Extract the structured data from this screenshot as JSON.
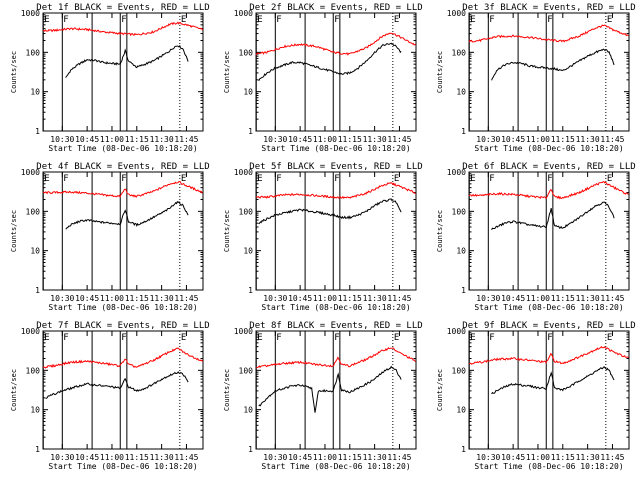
{
  "chart_data": {
    "type": "line",
    "y_scale": "log",
    "ylim": [
      1,
      1000
    ],
    "y_ticks": [
      "1",
      "10",
      "100",
      "1000"
    ],
    "ylabel": "Counts/sec",
    "x_range": [
      "10:18:20",
      "11:55"
    ],
    "x_ticks": [
      "10:30",
      "10:45",
      "11:00",
      "11:15",
      "11:30",
      "11:45"
    ],
    "xlabel": "Start Time (08-Dec-06 10:18:20)",
    "series_colors": {
      "events": "#000000",
      "lld": "#ff0000"
    },
    "flag_lines": [
      {
        "label": "E",
        "time": "10:18:30",
        "style": "solid"
      },
      {
        "label": "F",
        "time": "10:30",
        "style": "solid"
      },
      {
        "label": "",
        "time": "10:48",
        "style": "solid"
      },
      {
        "label": "F",
        "time": "11:05",
        "style": "solid"
      },
      {
        "label": "",
        "time": "11:09",
        "style": "solid"
      },
      {
        "label": "E",
        "time": "11:41",
        "style": "dotted"
      }
    ],
    "panels": [
      {
        "title": "Det 1f BLACK = Events, RED = LLD",
        "events": [
          [
            "10:32",
            22
          ],
          [
            "10:35",
            35
          ],
          [
            "10:40",
            50
          ],
          [
            "10:45",
            65
          ],
          [
            "10:50",
            62
          ],
          [
            "10:55",
            55
          ],
          [
            "11:00",
            52
          ],
          [
            "11:05",
            50
          ],
          [
            "11:08",
            110
          ],
          [
            "11:10",
            60
          ],
          [
            "11:15",
            42
          ],
          [
            "11:20",
            50
          ],
          [
            "11:25",
            60
          ],
          [
            "11:30",
            80
          ],
          [
            "11:35",
            110
          ],
          [
            "11:38",
            140
          ],
          [
            "11:40",
            150
          ],
          [
            "11:43",
            120
          ],
          [
            "11:46",
            60
          ]
        ],
        "lld": [
          [
            "10:18:20",
            350
          ],
          [
            "10:25",
            360
          ],
          [
            "10:35",
            400
          ],
          [
            "10:45",
            380
          ],
          [
            "10:55",
            330
          ],
          [
            "11:05",
            300
          ],
          [
            "11:15",
            280
          ],
          [
            "11:25",
            330
          ],
          [
            "11:35",
            520
          ],
          [
            "11:40",
            560
          ],
          [
            "11:45",
            500
          ],
          [
            "11:55",
            380
          ]
        ]
      },
      {
        "title": "Det 2f BLACK = Events, RED = LLD",
        "events": [
          [
            "10:20",
            20
          ],
          [
            "10:25",
            30
          ],
          [
            "10:30",
            40
          ],
          [
            "10:40",
            55
          ],
          [
            "10:45",
            55
          ],
          [
            "10:55",
            42
          ],
          [
            "11:05",
            32
          ],
          [
            "11:10",
            28
          ],
          [
            "11:15",
            30
          ],
          [
            "11:20",
            40
          ],
          [
            "11:25",
            60
          ],
          [
            "11:30",
            100
          ],
          [
            "11:35",
            150
          ],
          [
            "11:40",
            170
          ],
          [
            "11:43",
            140
          ],
          [
            "11:46",
            100
          ]
        ],
        "lld": [
          [
            "10:18:20",
            90
          ],
          [
            "10:25",
            100
          ],
          [
            "10:35",
            140
          ],
          [
            "10:45",
            160
          ],
          [
            "10:55",
            140
          ],
          [
            "11:05",
            100
          ],
          [
            "11:15",
            90
          ],
          [
            "11:25",
            130
          ],
          [
            "11:35",
            260
          ],
          [
            "11:40",
            320
          ],
          [
            "11:45",
            250
          ],
          [
            "11:55",
            150
          ]
        ]
      },
      {
        "title": "Det 3f BLACK = Events, RED = LLD",
        "events": [
          [
            "10:32",
            20
          ],
          [
            "10:35",
            35
          ],
          [
            "10:40",
            48
          ],
          [
            "10:45",
            55
          ],
          [
            "10:50",
            52
          ],
          [
            "10:55",
            45
          ],
          [
            "11:00",
            42
          ],
          [
            "11:05",
            40
          ],
          [
            "11:10",
            38
          ],
          [
            "11:15",
            34
          ],
          [
            "11:20",
            45
          ],
          [
            "11:25",
            60
          ],
          [
            "11:30",
            80
          ],
          [
            "11:35",
            100
          ],
          [
            "11:40",
            120
          ],
          [
            "11:43",
            100
          ],
          [
            "11:46",
            50
          ]
        ],
        "lld": [
          [
            "10:18:20",
            190
          ],
          [
            "10:25",
            200
          ],
          [
            "10:35",
            250
          ],
          [
            "10:45",
            260
          ],
          [
            "10:55",
            240
          ],
          [
            "11:05",
            210
          ],
          [
            "11:15",
            190
          ],
          [
            "11:25",
            260
          ],
          [
            "11:35",
            420
          ],
          [
            "11:40",
            480
          ],
          [
            "11:45",
            380
          ],
          [
            "11:55",
            260
          ]
        ]
      },
      {
        "title": "Det 4f BLACK = Events, RED = LLD",
        "events": [
          [
            "10:32",
            35
          ],
          [
            "10:35",
            45
          ],
          [
            "10:40",
            55
          ],
          [
            "10:45",
            60
          ],
          [
            "10:50",
            55
          ],
          [
            "10:55",
            52
          ],
          [
            "11:00",
            50
          ],
          [
            "11:05",
            48
          ],
          [
            "11:08",
            110
          ],
          [
            "11:10",
            55
          ],
          [
            "11:15",
            45
          ],
          [
            "11:20",
            55
          ],
          [
            "11:25",
            70
          ],
          [
            "11:30",
            90
          ],
          [
            "11:35",
            120
          ],
          [
            "11:38",
            160
          ],
          [
            "11:40",
            170
          ],
          [
            "11:43",
            140
          ],
          [
            "11:46",
            80
          ]
        ],
        "lld": [
          [
            "10:18:20",
            300
          ],
          [
            "10:25",
            300
          ],
          [
            "10:35",
            310
          ],
          [
            "10:45",
            290
          ],
          [
            "10:55",
            260
          ],
          [
            "11:05",
            240
          ],
          [
            "11:08",
            380
          ],
          [
            "11:10",
            260
          ],
          [
            "11:15",
            240
          ],
          [
            "11:25",
            320
          ],
          [
            "11:35",
            500
          ],
          [
            "11:40",
            560
          ],
          [
            "11:45",
            450
          ],
          [
            "11:55",
            300
          ]
        ]
      },
      {
        "title": "Det 5f BLACK = Events, RED = LLD",
        "events": [
          [
            "10:20",
            50
          ],
          [
            "10:25",
            65
          ],
          [
            "10:30",
            80
          ],
          [
            "10:40",
            100
          ],
          [
            "10:45",
            110
          ],
          [
            "10:55",
            95
          ],
          [
            "11:05",
            80
          ],
          [
            "11:10",
            70
          ],
          [
            "11:15",
            70
          ],
          [
            "11:20",
            80
          ],
          [
            "11:25",
            100
          ],
          [
            "11:30",
            140
          ],
          [
            "11:35",
            180
          ],
          [
            "11:40",
            200
          ],
          [
            "11:43",
            170
          ],
          [
            "11:46",
            90
          ]
        ],
        "lld": [
          [
            "10:18:20",
            230
          ],
          [
            "10:25",
            230
          ],
          [
            "10:35",
            260
          ],
          [
            "10:45",
            270
          ],
          [
            "10:55",
            250
          ],
          [
            "11:05",
            230
          ],
          [
            "11:15",
            220
          ],
          [
            "11:25",
            290
          ],
          [
            "11:35",
            460
          ],
          [
            "11:40",
            520
          ],
          [
            "11:45",
            430
          ],
          [
            "11:55",
            290
          ]
        ]
      },
      {
        "title": "Det 6f BLACK = Events, RED = LLD",
        "events": [
          [
            "10:32",
            35
          ],
          [
            "10:35",
            40
          ],
          [
            "10:40",
            50
          ],
          [
            "10:45",
            55
          ],
          [
            "10:50",
            50
          ],
          [
            "10:55",
            45
          ],
          [
            "11:00",
            42
          ],
          [
            "11:05",
            40
          ],
          [
            "11:08",
            120
          ],
          [
            "11:10",
            42
          ],
          [
            "11:15",
            38
          ],
          [
            "11:20",
            50
          ],
          [
            "11:25",
            70
          ],
          [
            "11:30",
            100
          ],
          [
            "11:35",
            140
          ],
          [
            "11:40",
            170
          ],
          [
            "11:43",
            130
          ],
          [
            "11:46",
            70
          ]
        ],
        "lld": [
          [
            "10:18:20",
            260
          ],
          [
            "10:25",
            250
          ],
          [
            "10:35",
            280
          ],
          [
            "10:45",
            270
          ],
          [
            "10:55",
            240
          ],
          [
            "11:05",
            220
          ],
          [
            "11:08",
            380
          ],
          [
            "11:10",
            230
          ],
          [
            "11:15",
            220
          ],
          [
            "11:25",
            300
          ],
          [
            "11:35",
            480
          ],
          [
            "11:40",
            560
          ],
          [
            "11:45",
            420
          ],
          [
            "11:55",
            260
          ]
        ]
      },
      {
        "title": "Det 7f BLACK = Events, RED = LLD",
        "events": [
          [
            "10:20",
            20
          ],
          [
            "10:25",
            25
          ],
          [
            "10:30",
            30
          ],
          [
            "10:40",
            40
          ],
          [
            "10:45",
            45
          ],
          [
            "10:55",
            40
          ],
          [
            "11:00",
            38
          ],
          [
            "11:05",
            35
          ],
          [
            "11:08",
            60
          ],
          [
            "11:10",
            38
          ],
          [
            "11:15",
            30
          ],
          [
            "11:20",
            35
          ],
          [
            "11:25",
            45
          ],
          [
            "11:30",
            60
          ],
          [
            "11:35",
            75
          ],
          [
            "11:40",
            90
          ],
          [
            "11:43",
            80
          ],
          [
            "11:46",
            50
          ]
        ],
        "lld": [
          [
            "10:18:20",
            120
          ],
          [
            "10:25",
            130
          ],
          [
            "10:35",
            160
          ],
          [
            "10:45",
            170
          ],
          [
            "10:55",
            150
          ],
          [
            "11:05",
            130
          ],
          [
            "11:08",
            200
          ],
          [
            "11:10",
            140
          ],
          [
            "11:15",
            120
          ],
          [
            "11:25",
            180
          ],
          [
            "11:35",
            300
          ],
          [
            "11:40",
            360
          ],
          [
            "11:45",
            260
          ],
          [
            "11:55",
            170
          ]
        ]
      },
      {
        "title": "Det 8f BLACK = Events, RED = LLD",
        "events": [
          [
            "10:20",
            12
          ],
          [
            "10:25",
            20
          ],
          [
            "10:30",
            30
          ],
          [
            "10:40",
            40
          ],
          [
            "10:45",
            42
          ],
          [
            "10:52",
            35
          ],
          [
            "10:54",
            8
          ],
          [
            "10:56",
            30
          ],
          [
            "11:05",
            30
          ],
          [
            "11:08",
            80
          ],
          [
            "11:10",
            32
          ],
          [
            "11:15",
            28
          ],
          [
            "11:20",
            35
          ],
          [
            "11:25",
            45
          ],
          [
            "11:30",
            60
          ],
          [
            "11:35",
            90
          ],
          [
            "11:40",
            120
          ],
          [
            "11:43",
            100
          ],
          [
            "11:46",
            60
          ]
        ],
        "lld": [
          [
            "10:18:20",
            120
          ],
          [
            "10:25",
            130
          ],
          [
            "10:35",
            150
          ],
          [
            "10:45",
            160
          ],
          [
            "10:55",
            140
          ],
          [
            "11:05",
            130
          ],
          [
            "11:08",
            220
          ],
          [
            "11:10",
            140
          ],
          [
            "11:15",
            130
          ],
          [
            "11:25",
            190
          ],
          [
            "11:35",
            320
          ],
          [
            "11:40",
            380
          ],
          [
            "11:45",
            280
          ],
          [
            "11:55",
            170
          ]
        ]
      },
      {
        "title": "Det 9f BLACK = Events, RED = LLD",
        "events": [
          [
            "10:32",
            25
          ],
          [
            "10:35",
            30
          ],
          [
            "10:40",
            38
          ],
          [
            "10:45",
            45
          ],
          [
            "10:50",
            42
          ],
          [
            "10:55",
            40
          ],
          [
            "11:00",
            36
          ],
          [
            "11:05",
            35
          ],
          [
            "11:08",
            90
          ],
          [
            "11:10",
            35
          ],
          [
            "11:15",
            32
          ],
          [
            "11:20",
            40
          ],
          [
            "11:25",
            55
          ],
          [
            "11:30",
            70
          ],
          [
            "11:35",
            95
          ],
          [
            "11:40",
            120
          ],
          [
            "11:43",
            100
          ],
          [
            "11:46",
            55
          ]
        ],
        "lld": [
          [
            "10:18:20",
            150
          ],
          [
            "10:25",
            160
          ],
          [
            "10:35",
            190
          ],
          [
            "10:45",
            200
          ],
          [
            "10:55",
            180
          ],
          [
            "11:05",
            160
          ],
          [
            "11:08",
            260
          ],
          [
            "11:10",
            170
          ],
          [
            "11:15",
            150
          ],
          [
            "11:25",
            220
          ],
          [
            "11:35",
            340
          ],
          [
            "11:40",
            400
          ],
          [
            "11:45",
            300
          ],
          [
            "11:55",
            200
          ]
        ]
      }
    ]
  }
}
